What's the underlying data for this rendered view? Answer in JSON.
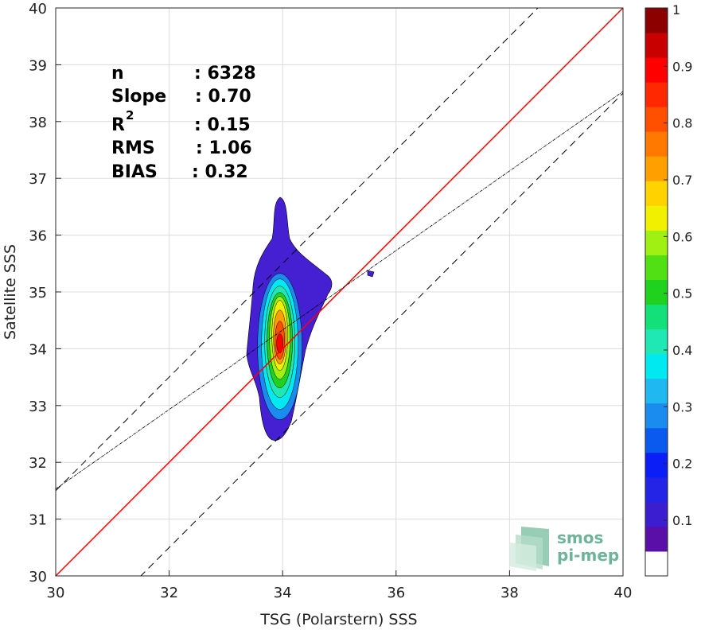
{
  "chart_data": {
    "type": "contour",
    "xlabel": "TSG (Polarstern) SSS",
    "ylabel": "Satellite SSS",
    "xlim": [
      30,
      40
    ],
    "ylim": [
      30,
      40
    ],
    "xticks": [
      30,
      32,
      34,
      36,
      38,
      40
    ],
    "yticks": [
      30,
      31,
      32,
      33,
      34,
      35,
      36,
      37,
      38,
      39,
      40
    ],
    "grid": true,
    "stats": {
      "n_label": "n",
      "n_value": ": 6328",
      "slope_label": "Slope",
      "slope_value": ": 0.70",
      "r2_label": "R",
      "r2_sup": "2",
      "r2_value": ": 0.15",
      "rms_label": "RMS",
      "rms_value": ": 1.06",
      "bias_label": "BIAS",
      "bias_value": ": 0.32"
    },
    "lines": {
      "identity": {
        "slope": 1,
        "intercept": 0,
        "color": "#ff0000"
      },
      "regression": {
        "slope": 0.7,
        "intercept": 10.53
      },
      "upper_bound": {
        "slope": 1,
        "intercept": 1.5
      },
      "lower_bound": {
        "slope": 1,
        "intercept": -1.5
      }
    },
    "density_peak": {
      "x": 33.95,
      "y": 34.15
    },
    "colorbar": {
      "ticks": [
        "0.1",
        "0.2",
        "0.3",
        "0.4",
        "0.5",
        "0.6",
        "0.7",
        "0.8",
        "0.9",
        "1"
      ],
      "colors": [
        "#ffffff",
        "#5a0fa8",
        "#3b1ed0",
        "#2424e6",
        "#0a1ef5",
        "#0a5af0",
        "#1a8cf0",
        "#20b8f0",
        "#00e8f0",
        "#20e8b4",
        "#14e07a",
        "#1ed21e",
        "#50e014",
        "#a0f014",
        "#f0f000",
        "#ffd200",
        "#ffa000",
        "#ff7800",
        "#ff5000",
        "#ff2800",
        "#ff0000",
        "#c80000",
        "#8c0000"
      ]
    }
  },
  "logo": {
    "line1": "smos",
    "line2": "pi-mep"
  }
}
